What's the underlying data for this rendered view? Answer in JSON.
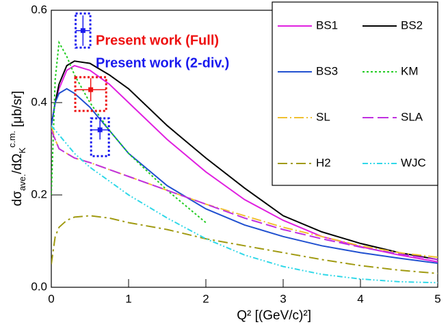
{
  "chart_data": {
    "type": "line",
    "xlabel": "Q² [(GeV/c)²]",
    "ylabel": [
      {
        "text": "dσ"
      },
      {
        "text": "ave.",
        "shift": "sub"
      },
      {
        "text": "/dΩ"
      },
      {
        "text": "K",
        "shift": "sub"
      },
      {
        "text": "c.m.",
        "shift": "sup"
      },
      {
        "text": " [μb/sr]"
      }
    ],
    "x": [
      0,
      0.05,
      0.1,
      0.2,
      0.3,
      0.5,
      0.75,
      1,
      1.5,
      2,
      2.5,
      3,
      3.5,
      4,
      4.5,
      5
    ],
    "xlim": [
      0,
      5
    ],
    "xticks": [
      0,
      1,
      2,
      3,
      4,
      5
    ],
    "ylim": [
      0,
      0.6
    ],
    "yticks": [
      {
        "value": 0,
        "label": "0.0"
      },
      0.2,
      0.4,
      0.6
    ],
    "series": [
      {
        "name": "BS1",
        "color": "#e020e0",
        "dash": "",
        "values": [
          0.35,
          0.4,
          0.43,
          0.47,
          0.48,
          0.47,
          0.44,
          0.4,
          0.32,
          0.25,
          0.19,
          0.145,
          0.11,
          0.088,
          0.07,
          0.055
        ]
      },
      {
        "name": "BS2",
        "color": "#000000",
        "dash": "",
        "values": [
          0.35,
          0.4,
          0.44,
          0.48,
          0.49,
          0.485,
          0.46,
          0.43,
          0.35,
          0.28,
          0.215,
          0.155,
          0.12,
          0.095,
          0.075,
          0.06
        ]
      },
      {
        "name": "BS3",
        "color": "#2050d0",
        "dash": "",
        "values": [
          0.35,
          0.4,
          0.42,
          0.43,
          0.42,
          0.39,
          0.34,
          0.29,
          0.22,
          0.17,
          0.135,
          0.11,
          0.09,
          0.075,
          0.063,
          0.052
        ]
      },
      {
        "name": "KM",
        "color": "#22cc22",
        "dash": "3 3",
        "values": [
          0.2,
          0.45,
          0.53,
          0.5,
          0.46,
          0.4,
          0.34,
          0.29,
          0.21,
          0.14,
          null,
          null,
          null,
          null,
          null,
          null
        ]
      },
      {
        "name": "SL",
        "color": "#f0c030",
        "dash": "14 4 2 4",
        "values": [
          0.35,
          0.32,
          0.3,
          0.29,
          0.28,
          0.27,
          0.255,
          0.24,
          0.21,
          0.18,
          0.155,
          0.13,
          0.11,
          0.09,
          0.075,
          0.065
        ]
      },
      {
        "name": "SLA",
        "color": "#c030e0",
        "dash": "16 6",
        "values": [
          0.34,
          0.32,
          0.3,
          0.29,
          0.28,
          0.27,
          0.255,
          0.24,
          0.21,
          0.18,
          0.15,
          0.125,
          0.105,
          0.087,
          0.072,
          0.06
        ]
      },
      {
        "name": "H2",
        "color": "#a09a10",
        "dash": "14 5 3 5",
        "values": [
          0.05,
          0.11,
          0.13,
          0.145,
          0.152,
          0.155,
          0.15,
          0.14,
          0.125,
          0.105,
          0.09,
          0.075,
          0.06,
          0.047,
          0.037,
          0.03
        ]
      },
      {
        "name": "WJC",
        "color": "#30d8e8",
        "dash": "8 3 2 3 2 3",
        "values": [
          0.35,
          0.34,
          0.33,
          0.31,
          0.29,
          0.26,
          0.23,
          0.2,
          0.15,
          0.105,
          0.07,
          0.045,
          0.028,
          0.018,
          0.012,
          0.01
        ]
      }
    ],
    "points": [
      {
        "name": "Present work (Full)",
        "color": "#ee1111",
        "x": [
          0.51
        ],
        "y": [
          0.428
        ],
        "yerr": [
          0.025
        ],
        "xerr": [
          0.2
        ],
        "sys": [
          [
            0.382,
            0.455
          ]
        ]
      },
      {
        "name": "Present work (2-div.)",
        "color": "#1a1aee",
        "x": [
          0.41,
          0.63
        ],
        "y": [
          0.556,
          0.341
        ],
        "yerr": [
          0.033,
          0.021
        ],
        "xerr": [
          0.095,
          0.115
        ],
        "sys": [
          [
            0.519,
            0.593
          ],
          [
            0.284,
            0.366
          ]
        ]
      }
    ]
  }
}
